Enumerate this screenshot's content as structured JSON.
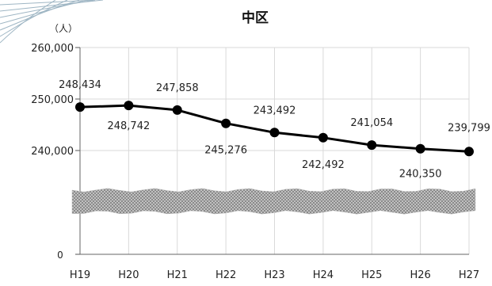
{
  "chart_data": {
    "type": "line",
    "title": "中区",
    "ylabel": "（人）",
    "xlabel": "",
    "categories": [
      "H19",
      "H20",
      "H21",
      "H22",
      "H23",
      "H24",
      "H25",
      "H26",
      "H27"
    ],
    "series": [
      {
        "values": [
          248434,
          248742,
          247858,
          245276,
          243492,
          242492,
          241054,
          240350,
          239799
        ]
      }
    ],
    "data_labels": [
      "248,434",
      "248,742",
      "247,858",
      "245,276",
      "243,492",
      "242,492",
      "241,054",
      "240,350",
      "239,799"
    ],
    "y_ticks": [
      "0",
      "240,000",
      "250,000",
      "260,000"
    ],
    "ylim": [
      0,
      260000
    ],
    "axis_break": true,
    "grid": true,
    "legend": "none",
    "line_color": "#000000",
    "marker_color": "#000000",
    "grid_color": "#d9d9d9",
    "break_band_color": "#b9b9b9"
  }
}
